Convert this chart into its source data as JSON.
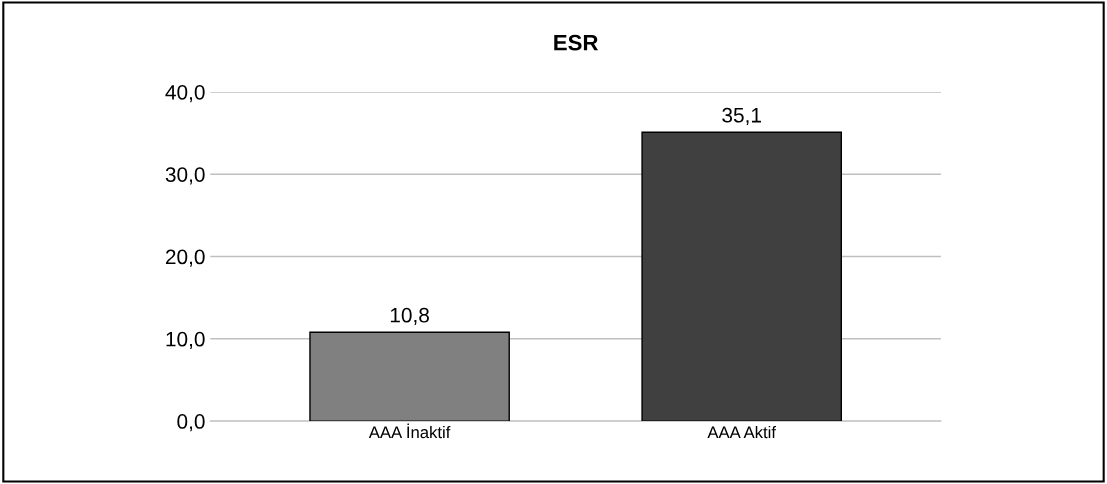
{
  "chart_data": {
    "type": "bar",
    "title": "ESR",
    "categories": [
      "AAA İnaktif",
      "AAA Aktif"
    ],
    "values": [
      10.8,
      35.1
    ],
    "colors": [
      "#808080",
      "#404040"
    ],
    "value_labels": [
      "10,8",
      "35,1"
    ],
    "ylim": [
      0,
      40
    ],
    "yticks": [
      {
        "value": 0,
        "label": "0,0"
      },
      {
        "value": 10,
        "label": "10,0"
      },
      {
        "value": 20,
        "label": "20,0"
      },
      {
        "value": 30,
        "label": "30,0"
      },
      {
        "value": 40,
        "label": "40,0"
      }
    ],
    "grid": "y",
    "legend": false
  }
}
